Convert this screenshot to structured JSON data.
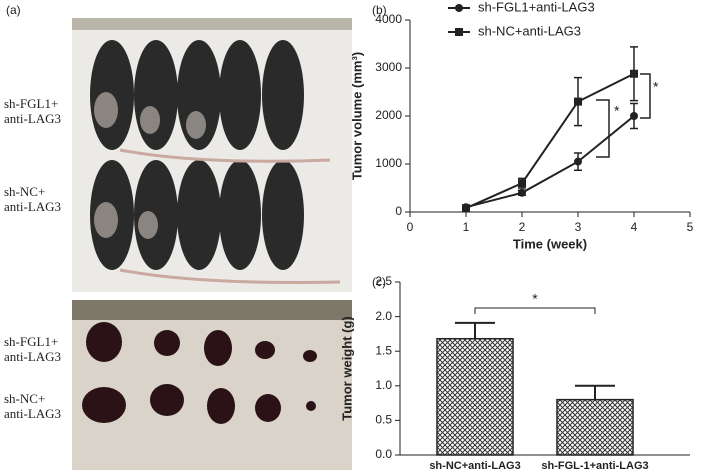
{
  "panels": {
    "labels": [
      "(a)",
      "(b)",
      "(c)"
    ],
    "photo_top": [
      "sh-FGL1+\nanti-LAG3",
      "sh-NC+\nanti-LAG3"
    ],
    "photo_bottom": [
      "sh-FGL1+\nanti-LAG3",
      "sh-NC+\nanti-LAG3"
    ]
  },
  "chart_data": [
    {
      "type": "line",
      "xlabel": "Time (week)",
      "ylabel": "Tumor volume (mm³)",
      "x": [
        1,
        2,
        3,
        4
      ],
      "xlim": [
        0,
        5
      ],
      "xticks": [
        0,
        1,
        2,
        3,
        4,
        5
      ],
      "ylim": [
        0,
        4000
      ],
      "yticks": [
        0,
        1000,
        2000,
        3000,
        4000
      ],
      "series": [
        {
          "name": "sh-FGL1+anti-LAG3",
          "color": "#222222",
          "marker": "circle",
          "values": [
            100,
            400,
            1050,
            2000
          ],
          "errors": [
            30,
            50,
            180,
            260
          ]
        },
        {
          "name": "sh-NC+anti-LAG3",
          "color": "#222222",
          "marker": "square",
          "values": [
            80,
            600,
            2300,
            2880
          ],
          "errors": [
            30,
            100,
            500,
            560
          ]
        }
      ],
      "annotations": [
        "*",
        "*"
      ]
    },
    {
      "type": "bar",
      "ylabel": "Tumor weight (g)",
      "categories": [
        "sh-NC+anti-LAG3",
        "sh-FGL-1+anti-LAG3"
      ],
      "values": [
        1.68,
        0.8
      ],
      "errors": [
        0.23,
        0.2
      ],
      "color": "#222222",
      "ylim": [
        0,
        2.5
      ],
      "yticks": [
        {
          "value": 0,
          "label": "0.0"
        },
        0.5,
        {
          "value": 1,
          "label": "1.0"
        },
        1.5,
        {
          "value": 2,
          "label": "2.0"
        },
        2.5
      ],
      "annotations": [
        "*"
      ]
    }
  ]
}
